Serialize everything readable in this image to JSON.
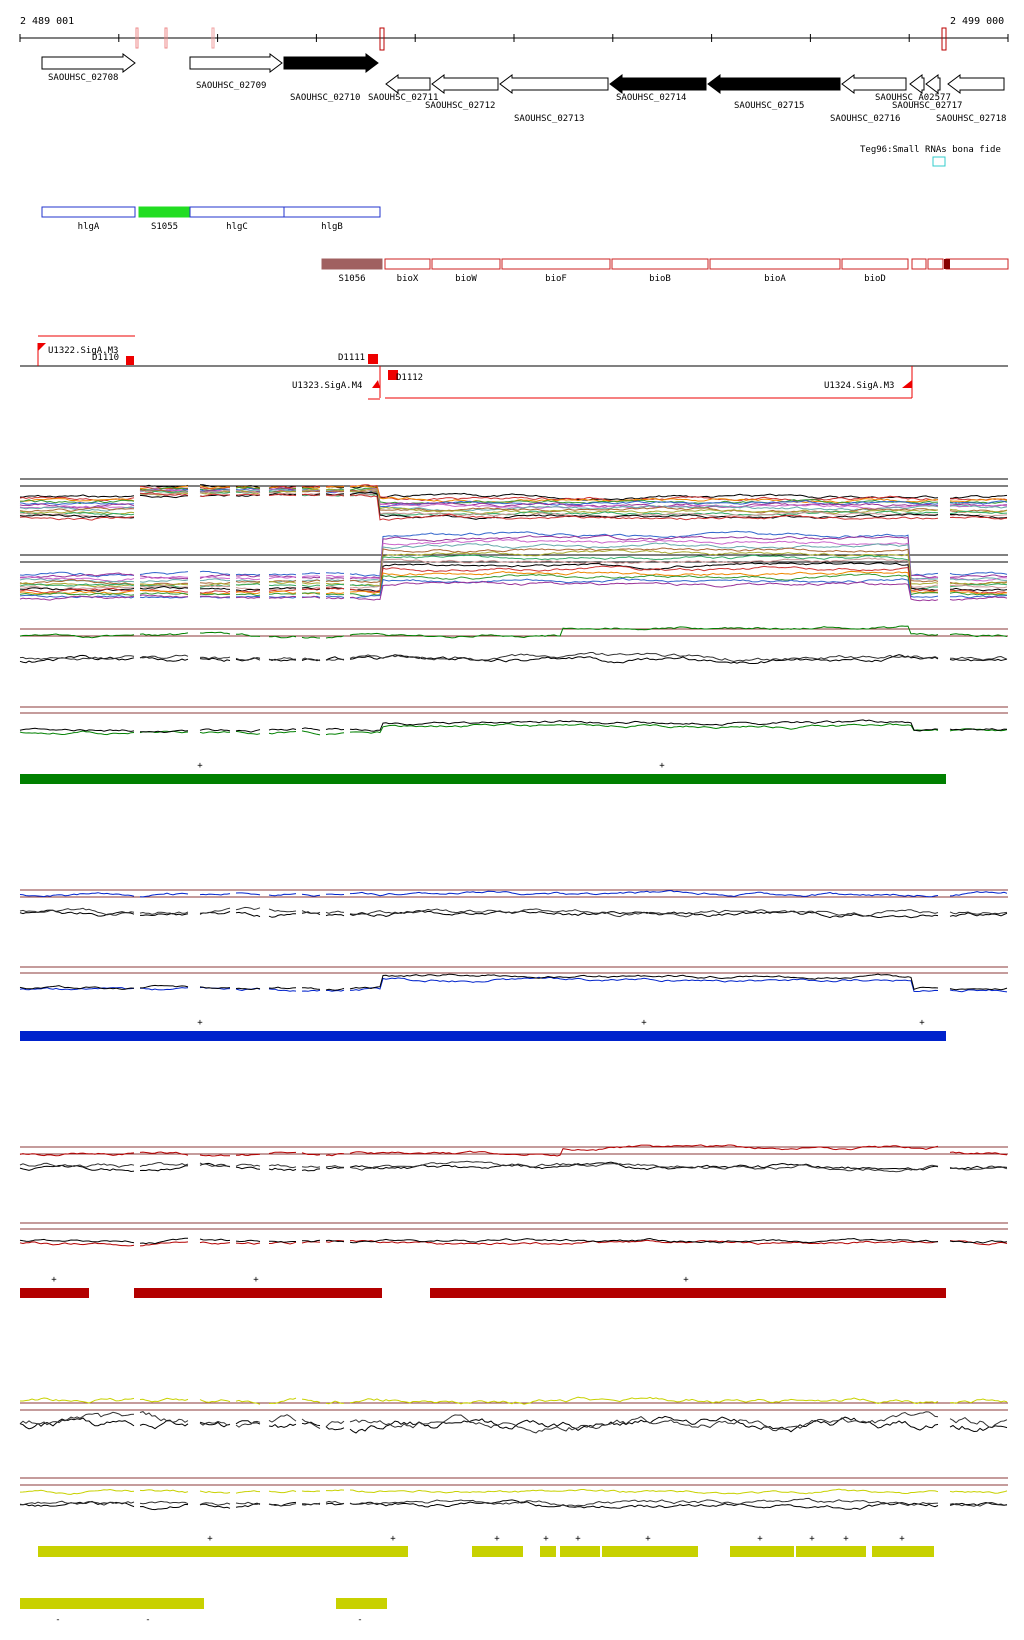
{
  "coords": {
    "start": "2 489 001",
    "end": "2 499 000"
  },
  "genes_top": [
    {
      "label": "SAOUHSC_02708",
      "dir": "right",
      "fill": "white"
    },
    {
      "label": "SAOUHSC_02709",
      "dir": "right",
      "fill": "white"
    },
    {
      "label": "SAOUHSC_02710",
      "dir": "right",
      "fill": "black"
    },
    {
      "label": "SAOUHSC_02711",
      "dir": "left",
      "fill": "white"
    },
    {
      "label": "SAOUHSC_02712",
      "dir": "left",
      "fill": "white"
    },
    {
      "label": "SAOUHSC_02713",
      "dir": "left",
      "fill": "white"
    },
    {
      "label": "SAOUHSC_02714",
      "dir": "left",
      "fill": "black"
    },
    {
      "label": "SAOUHSC_02715",
      "dir": "left",
      "fill": "black"
    },
    {
      "label": "SAOUHSC_02716",
      "dir": "left",
      "fill": "white"
    },
    {
      "label": "SAOUHSC_A02577",
      "dir": "left",
      "fill": "white"
    },
    {
      "label": "SAOUHSC_02717",
      "dir": "left",
      "fill": "white"
    },
    {
      "label": "SAOUHSC_02718",
      "dir": "left",
      "fill": "white"
    }
  ],
  "srna_label": "Teg96:Small RNAs bona fide",
  "operon_row1": [
    {
      "label": "hlgA",
      "color": "#2233cc"
    },
    {
      "label": "S1055",
      "color": "#22dd22",
      "filled": true
    },
    {
      "label": "hlgC",
      "color": "#2233cc"
    },
    {
      "label": "hlgB",
      "color": "#2233cc"
    }
  ],
  "operon_row2": [
    {
      "label": "S1056",
      "color": "#a06060",
      "filled": true
    },
    {
      "label": "bioX",
      "color": "#cc2222"
    },
    {
      "label": "bioW",
      "color": "#cc2222"
    },
    {
      "label": "bioF",
      "color": "#cc2222"
    },
    {
      "label": "bioB",
      "color": "#cc2222"
    },
    {
      "label": "bioA",
      "color": "#cc2222"
    },
    {
      "label": "bioD",
      "color": "#cc2222"
    }
  ],
  "promoters": [
    "U1322.SigA.M3",
    "D1110",
    "D1111",
    "U1323.SigA.M4",
    "D1112",
    "U1324.SigA.M3"
  ],
  "track_colors": {
    "green": "#008000",
    "blue": "#0022cc",
    "red": "#b30000",
    "yellow": "#c8d100",
    "ref": "#8b3a3a"
  },
  "segment_marks": {
    "green": "+",
    "blue": "+",
    "red": "+",
    "yellow_plus": "+",
    "yellow_minus": "-"
  }
}
